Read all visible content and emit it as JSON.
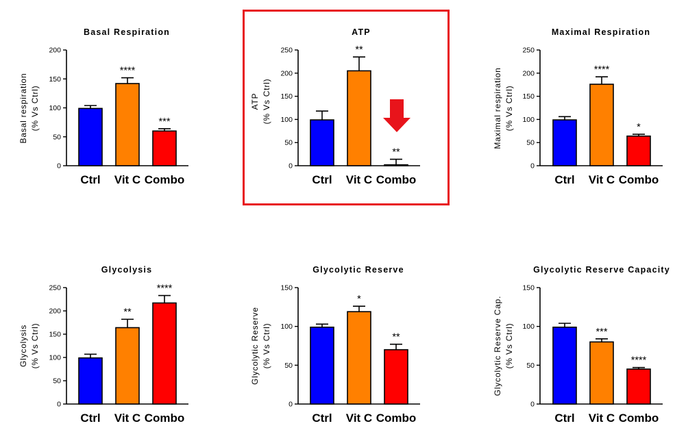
{
  "figure": {
    "annotation": "highlight-box-and-arrow-on-ATP-combo"
  },
  "colors": {
    "ctrl": "#0000ff",
    "vitc": "#ff8000",
    "combo": "#ff0000",
    "highlight": "#e8141b",
    "axis": "#000000"
  },
  "chart_data": [
    {
      "type": "bar",
      "title": "Basal Respiration",
      "ylabel_line1": "Basal respiration",
      "ylabel_line2": "(% Vs Ctrl)",
      "categories": [
        "Ctrl",
        "Vit C",
        "Combo"
      ],
      "values": [
        99,
        142,
        60
      ],
      "errors": [
        5,
        10,
        4
      ],
      "significance": [
        "",
        "****",
        "***"
      ],
      "ylim": [
        0,
        200
      ],
      "yticks": [
        0,
        50,
        100,
        150,
        200
      ]
    },
    {
      "type": "bar",
      "title": "ATP",
      "ylabel_line1": "ATP",
      "ylabel_line2": "(% Vs Ctrl)",
      "categories": [
        "Ctrl",
        "Vit C",
        "Combo"
      ],
      "values": [
        99,
        205,
        2
      ],
      "errors": [
        19,
        30,
        12
      ],
      "significance": [
        "",
        "**",
        "**"
      ],
      "ylim": [
        0,
        250
      ],
      "yticks": [
        0,
        50,
        100,
        150,
        200,
        250
      ],
      "highlighted": true
    },
    {
      "type": "bar",
      "title": "Maximal Respiration",
      "ylabel_line1": "Maximal respiration",
      "ylabel_line2": "(% Vs Ctrl)",
      "categories": [
        "Ctrl",
        "Vit C",
        "Combo"
      ],
      "values": [
        99,
        176,
        64
      ],
      "errors": [
        7,
        16,
        4
      ],
      "significance": [
        "",
        "****",
        "*"
      ],
      "ylim": [
        0,
        250
      ],
      "yticks": [
        0,
        50,
        100,
        150,
        200,
        250
      ]
    },
    {
      "type": "bar",
      "title": "Glycolysis",
      "ylabel_line1": "Glycolysis",
      "ylabel_line2": "(% Vs Ctrl)",
      "categories": [
        "Ctrl",
        "Vit C",
        "Combo"
      ],
      "values": [
        99,
        164,
        217
      ],
      "errors": [
        8,
        18,
        16
      ],
      "significance": [
        "",
        "**",
        "****"
      ],
      "ylim": [
        0,
        250
      ],
      "yticks": [
        0,
        50,
        100,
        150,
        200,
        250
      ]
    },
    {
      "type": "bar",
      "title": "Glycolytic Reserve",
      "ylabel_line1": "Glycolytic Reserve",
      "ylabel_line2": "(% Vs Ctrl)",
      "categories": [
        "Ctrl",
        "Vit C",
        "Combo"
      ],
      "values": [
        99,
        119,
        70
      ],
      "errors": [
        4,
        7,
        7
      ],
      "significance": [
        "",
        "*",
        "**"
      ],
      "ylim": [
        0,
        150
      ],
      "yticks": [
        0,
        50,
        100,
        150
      ]
    },
    {
      "type": "bar",
      "title": "Glycolytic Reserve Capacity",
      "ylabel_line1": "Glycolytic Reserve Cap.",
      "ylabel_line2": "(% Vs Ctrl)",
      "categories": [
        "Ctrl",
        "Vit C",
        "Combo"
      ],
      "values": [
        99,
        80,
        45
      ],
      "errors": [
        5,
        4,
        2
      ],
      "significance": [
        "",
        "***",
        "****"
      ],
      "ylim": [
        0,
        150
      ],
      "yticks": [
        0,
        50,
        100,
        150
      ]
    }
  ]
}
